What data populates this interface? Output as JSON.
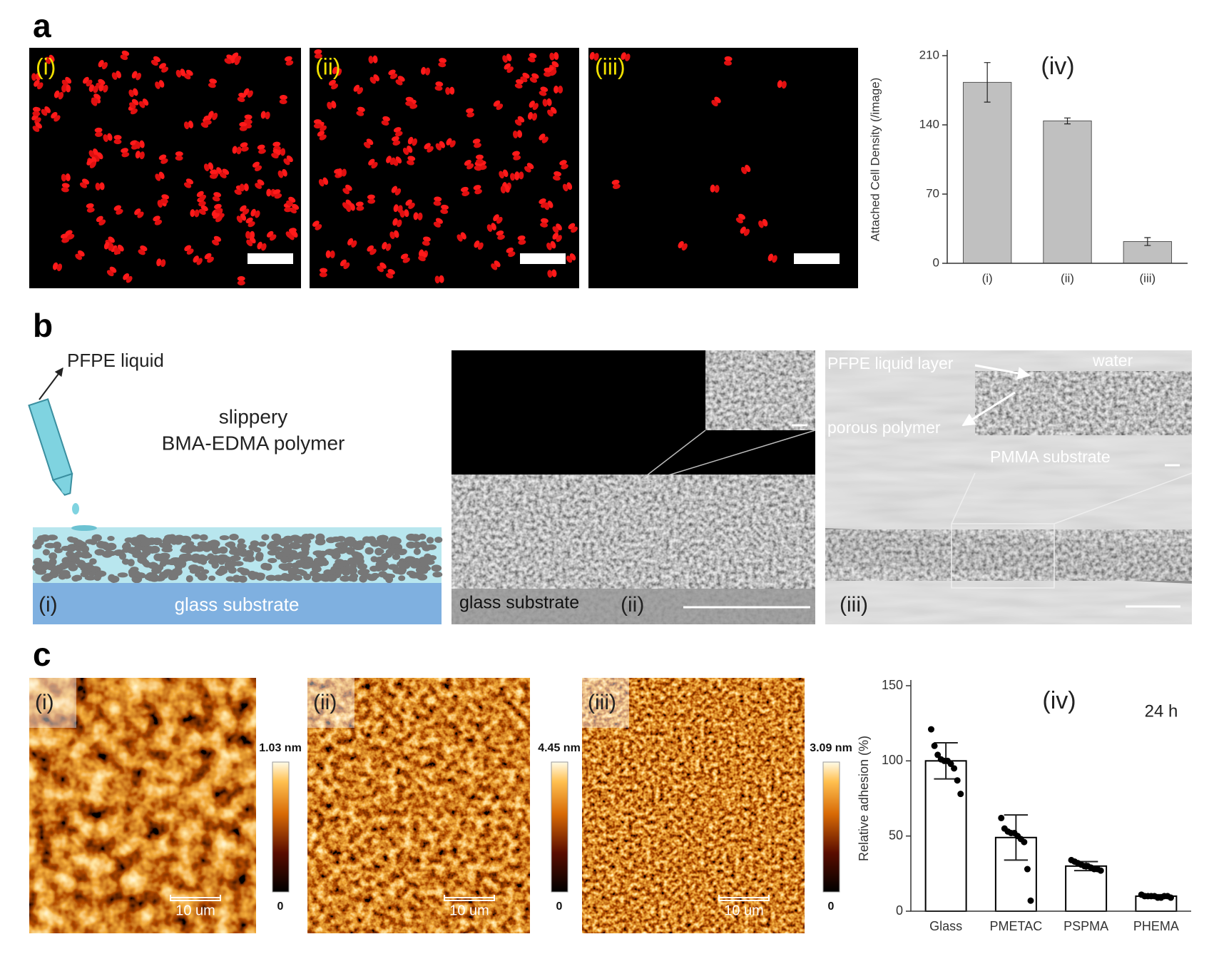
{
  "panel_labels": [
    "a",
    "b",
    "c"
  ],
  "panel_a": {
    "image_labels": [
      "(i)",
      "(ii)",
      "(iii)"
    ]
  },
  "panel_b": {
    "schematic": {
      "callout": "PFPE liquid",
      "title_lines": [
        "slippery",
        "BMA-EDMA polymer"
      ],
      "substrate": "glass substrate",
      "label": "(i)"
    },
    "sem": {
      "substrate": "glass substrate",
      "label": "(ii)"
    },
    "cross_section": {
      "liquid_layer": "PFPE liquid layer",
      "water": "water",
      "polymer": "porous polymer",
      "substrate": "PMMA substrate",
      "label": "(iii)"
    }
  },
  "panel_c": {
    "images": [
      {
        "label": "(i)",
        "scale_bar": "10 um",
        "max": "1.03 nm",
        "min": "0"
      },
      {
        "label": "(ii)",
        "scale_bar": "10 um",
        "max": "4.45 nm",
        "min": "0"
      },
      {
        "label": "(iii)",
        "scale_bar": "10 um",
        "max": "3.09 nm",
        "min": "0"
      }
    ]
  },
  "chart_data": [
    {
      "type": "bar",
      "title": "(iv)",
      "ylabel": "Attached Cell Density (/image)",
      "categories": [
        "(i)",
        "(ii)",
        "(iii)"
      ],
      "values": [
        183,
        144,
        22
      ],
      "errors": [
        20,
        3,
        4
      ],
      "color": "#c0c0c0",
      "ylim": [
        0,
        210
      ],
      "yticks": [
        0,
        70,
        140,
        210
      ]
    },
    {
      "type": "bar",
      "title": "(iv)",
      "annotation": "24 h",
      "ylabel": "Relative adhesion (%)",
      "categories": [
        "Glass",
        "PMETAC",
        "PSPMA",
        "PHEMA"
      ],
      "values": [
        100,
        49,
        30,
        10
      ],
      "errors": [
        12,
        15,
        3,
        1
      ],
      "points": [
        [
          121,
          110,
          104,
          101,
          100,
          100,
          98,
          95,
          87,
          78
        ],
        [
          62,
          55,
          53,
          52,
          52,
          50,
          48,
          46,
          28,
          7
        ],
        [
          34,
          33,
          32,
          31,
          30,
          30,
          29,
          28,
          28,
          27
        ],
        [
          11,
          10,
          10,
          10,
          10,
          9,
          9,
          10,
          10,
          9
        ]
      ],
      "color": "#ffffff",
      "point_color": "#000000",
      "ylim": [
        0,
        150
      ],
      "yticks": [
        0,
        50,
        100,
        150
      ]
    }
  ]
}
